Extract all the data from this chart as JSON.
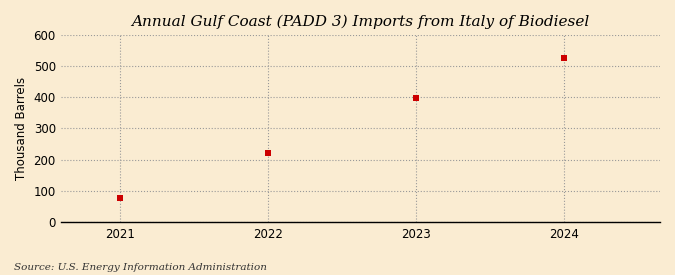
{
  "title": "Annual Gulf Coast (PADD 3) Imports from Italy of Biodiesel",
  "ylabel": "Thousand Barrels",
  "source": "Source: U.S. Energy Information Administration",
  "background_color": "#faecd2",
  "plot_background_color": "#faecd2",
  "x_values": [
    2021,
    2022,
    2023,
    2024
  ],
  "y_values": [
    76,
    220,
    398,
    527
  ],
  "marker_color": "#cc0000",
  "marker_size": 4,
  "ylim": [
    0,
    600
  ],
  "yticks": [
    0,
    100,
    200,
    300,
    400,
    500,
    600
  ],
  "xlim": [
    2020.6,
    2024.65
  ],
  "xticks": [
    2021,
    2022,
    2023,
    2024
  ],
  "grid_color": "#999999",
  "grid_style": ":",
  "title_fontsize": 11,
  "axis_fontsize": 8.5,
  "source_fontsize": 7.5
}
